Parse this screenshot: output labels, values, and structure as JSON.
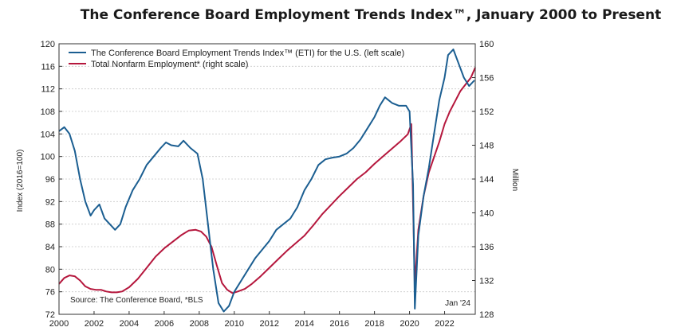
{
  "chart_data": {
    "type": "line",
    "title": "The Conference Board Employment Trends Index™, January 2000 to Present",
    "ylabel": "Index (2016=100)",
    "y2label": "Million",
    "source": "Source: The Conference Board, *BLS",
    "date_note": "Jan '24",
    "grid": true,
    "legend_position": "top-left",
    "xlim": [
      2000,
      2023.75
    ],
    "ylim": [
      72,
      120
    ],
    "y2lim": [
      128,
      160
    ],
    "x_ticks": [
      2000,
      2002,
      2004,
      2006,
      2008,
      2010,
      2012,
      2014,
      2016,
      2018,
      2020,
      2022
    ],
    "x_tick_labels": [
      "2000",
      "2002",
      "2004",
      "2006",
      "2008",
      "2010",
      "2012",
      "2014",
      "2016",
      "2018",
      "2020",
      "2022"
    ],
    "y_ticks": [
      72,
      76,
      80,
      84,
      88,
      92,
      96,
      100,
      104,
      108,
      112,
      116,
      120
    ],
    "y_tick_labels": [
      "72",
      "76",
      "80",
      "84",
      "88",
      "92",
      "96",
      "100",
      "104",
      "108",
      "112",
      "116",
      "120"
    ],
    "y2_ticks": [
      128,
      132,
      136,
      140,
      144,
      148,
      152,
      156,
      160
    ],
    "y2_tick_labels": [
      "128",
      "132",
      "136",
      "140",
      "144",
      "148",
      "152",
      "156",
      "160"
    ],
    "series": [
      {
        "name": "The Conference Board Employment Trends Index™ (ETI) for the U.S. (left scale)",
        "axis": "left",
        "color": "#1b5e91",
        "x": [
          2000.0,
          2000.3,
          2000.6,
          2000.9,
          2001.2,
          2001.5,
          2001.8,
          2002.0,
          2002.3,
          2002.6,
          2002.9,
          2003.2,
          2003.5,
          2003.8,
          2004.2,
          2004.6,
          2005.0,
          2005.4,
          2005.8,
          2006.1,
          2006.4,
          2006.8,
          2007.1,
          2007.5,
          2007.9,
          2008.2,
          2008.5,
          2008.8,
          2009.1,
          2009.4,
          2009.7,
          2010.0,
          2010.4,
          2010.8,
          2011.2,
          2011.6,
          2012.0,
          2012.4,
          2012.8,
          2013.2,
          2013.6,
          2014.0,
          2014.4,
          2014.8,
          2015.2,
          2015.6,
          2016.0,
          2016.4,
          2016.8,
          2017.2,
          2017.6,
          2018.0,
          2018.3,
          2018.6,
          2019.0,
          2019.4,
          2019.8,
          2020.0,
          2020.2,
          2020.3,
          2020.5,
          2020.8,
          2021.1,
          2021.4,
          2021.7,
          2022.0,
          2022.2,
          2022.5,
          2022.8,
          2023.1,
          2023.4,
          2023.7
        ],
        "values": [
          104.5,
          105.2,
          104.0,
          101.0,
          96.0,
          92.0,
          89.5,
          90.5,
          91.5,
          89.0,
          88.0,
          87.0,
          88.0,
          91.0,
          94.0,
          96.0,
          98.5,
          100.0,
          101.5,
          102.5,
          102.0,
          101.8,
          102.8,
          101.5,
          100.5,
          96.0,
          88.0,
          80.0,
          74.0,
          72.5,
          73.5,
          76.0,
          78.0,
          80.0,
          82.0,
          83.5,
          85.0,
          87.0,
          88.0,
          89.0,
          91.0,
          94.0,
          96.0,
          98.5,
          99.5,
          99.8,
          100.0,
          100.5,
          101.5,
          103.0,
          105.0,
          107.0,
          109.0,
          110.5,
          109.5,
          109.0,
          109.0,
          108.0,
          95.0,
          73.0,
          86.0,
          93.0,
          98.0,
          104.0,
          110.0,
          114.0,
          118.0,
          119.0,
          116.5,
          114.0,
          112.5,
          113.5
        ]
      },
      {
        "name": "Total Nonfarm Employment* (right scale)",
        "axis": "right",
        "color": "#b5173d",
        "x": [
          2000.0,
          2000.3,
          2000.6,
          2000.9,
          2001.2,
          2001.5,
          2001.8,
          2002.1,
          2002.4,
          2002.7,
          2003.0,
          2003.3,
          2003.6,
          2004.0,
          2004.5,
          2005.0,
          2005.5,
          2006.0,
          2006.5,
          2007.0,
          2007.4,
          2007.8,
          2008.1,
          2008.4,
          2008.7,
          2009.0,
          2009.3,
          2009.6,
          2009.9,
          2010.2,
          2010.6,
          2011.0,
          2011.5,
          2012.0,
          2012.5,
          2013.0,
          2013.5,
          2014.0,
          2014.5,
          2015.0,
          2015.5,
          2016.0,
          2016.5,
          2017.0,
          2017.5,
          2018.0,
          2018.5,
          2019.0,
          2019.5,
          2019.9,
          2020.1,
          2020.3,
          2020.5,
          2020.8,
          2021.1,
          2021.4,
          2021.7,
          2022.0,
          2022.3,
          2022.6,
          2022.9,
          2023.2,
          2023.5,
          2023.75
        ],
        "values": [
          131.6,
          132.3,
          132.6,
          132.5,
          132.0,
          131.3,
          131.0,
          130.9,
          130.9,
          130.7,
          130.6,
          130.6,
          130.7,
          131.2,
          132.2,
          133.5,
          134.8,
          135.8,
          136.6,
          137.4,
          137.9,
          138.0,
          137.8,
          137.2,
          136.0,
          133.8,
          131.7,
          130.9,
          130.5,
          130.7,
          131.0,
          131.6,
          132.5,
          133.5,
          134.5,
          135.5,
          136.4,
          137.3,
          138.5,
          139.8,
          140.9,
          142.0,
          143.0,
          144.0,
          144.8,
          145.8,
          146.7,
          147.6,
          148.5,
          149.3,
          150.5,
          131.4,
          138.0,
          142.0,
          144.8,
          146.6,
          148.4,
          150.5,
          152.0,
          153.2,
          154.4,
          155.2,
          156.0,
          157.2
        ]
      }
    ]
  }
}
